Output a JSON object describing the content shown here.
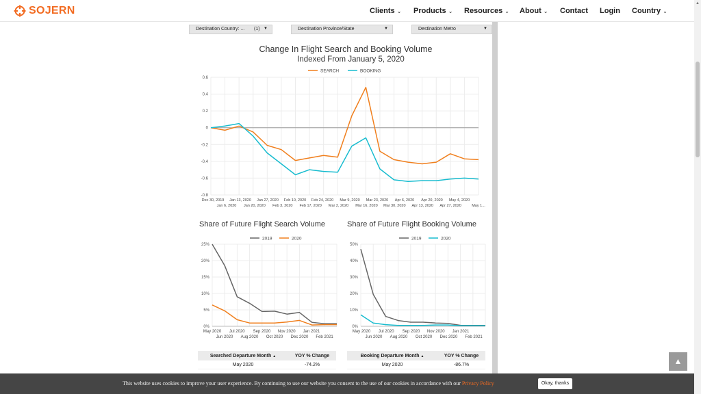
{
  "brand": {
    "name": "SOJERN",
    "accent": "#f26b21"
  },
  "nav": {
    "items": [
      {
        "label": "Clients",
        "dropdown": true
      },
      {
        "label": "Products",
        "dropdown": true
      },
      {
        "label": "Resources",
        "dropdown": true
      },
      {
        "label": "About",
        "dropdown": true
      },
      {
        "label": "Contact",
        "dropdown": false
      },
      {
        "label": "Login",
        "dropdown": false
      },
      {
        "label": "Country",
        "dropdown": true
      }
    ]
  },
  "filters": [
    {
      "label": "Destination Country: ...",
      "count": "(1)"
    },
    {
      "label": "Destination Province/State",
      "count": ""
    },
    {
      "label": "Destination Metro",
      "count": ""
    }
  ],
  "main_chart": {
    "title": "Change In Flight Search and Booking Volume",
    "subtitle": "Indexed From January 5, 2020"
  },
  "search_chart": {
    "title": "Share of Future Flight Search Volume"
  },
  "booking_chart": {
    "title": "Share of Future Flight Booking Volume"
  },
  "chart_data": [
    {
      "type": "line",
      "title": "Change In Flight Search and Booking Volume",
      "subtitle": "Indexed From January 5, 2020",
      "x": [
        "Dec 30, 2019",
        "Jan 6, 2020",
        "Jan 13, 2020",
        "Jan 20, 2020",
        "Jan 27, 2020",
        "Feb 3, 2020",
        "Feb 10, 2020",
        "Feb 17, 2020",
        "Feb 24, 2020",
        "Mar 2, 2020",
        "Mar 9, 2020",
        "Mar 16, 2020",
        "Mar 23, 2020",
        "Mar 30, 2020",
        "Apr 6, 2020",
        "Apr 13, 2020",
        "Apr 20, 2020",
        "Apr 27, 2020",
        "May 4, 2020",
        "May 1..."
      ],
      "x_labels_top": [
        "Dec 30, 2019",
        "Jan 13, 2020",
        "Jan 27, 2020",
        "Feb 10, 2020",
        "Feb 24, 2020",
        "Mar 9, 2020",
        "Mar 23, 2020",
        "Apr 6, 2020",
        "Apr 20, 2020",
        "May 4, 2020"
      ],
      "x_labels_bottom": [
        "Jan 6, 2020",
        "Jan 20, 2020",
        "Feb 3, 2020",
        "Feb 17, 2020",
        "Mar 2, 2020",
        "Mar 16, 2020",
        "Mar 30, 2020",
        "Apr 13, 2020",
        "Apr 27, 2020",
        "May 1..."
      ],
      "series": [
        {
          "name": "SEARCH",
          "color": "#f07f1d",
          "values": [
            0,
            -0.03,
            0.02,
            -0.05,
            -0.21,
            -0.26,
            -0.39,
            -0.36,
            -0.33,
            -0.35,
            0.14,
            0.48,
            -0.28,
            -0.38,
            -0.41,
            -0.43,
            -0.41,
            -0.31,
            -0.37,
            -0.38
          ]
        },
        {
          "name": "BOOKING",
          "color": "#17bccf",
          "values": [
            0,
            0.02,
            0.05,
            -0.1,
            -0.3,
            -0.43,
            -0.56,
            -0.5,
            -0.52,
            -0.53,
            -0.22,
            -0.12,
            -0.49,
            -0.62,
            -0.64,
            -0.63,
            -0.63,
            -0.61,
            -0.6,
            -0.61
          ]
        }
      ],
      "yticks": [
        "0.6",
        "0.4",
        "0.2",
        "0",
        "-0.2",
        "-0.4",
        "-0.6",
        "-0.8"
      ],
      "ylim": [
        -0.8,
        0.6
      ],
      "legend": "top-center",
      "grid": true
    },
    {
      "type": "line",
      "title": "Share of Future Flight Search Volume",
      "x_labels_top": [
        "May 2020",
        "Jul 2020",
        "Sep 2020",
        "Nov 2020",
        "Jan 2021"
      ],
      "x_labels_bottom": [
        "Jun 2020",
        "Aug 2020",
        "Oct 2020",
        "Dec 2020",
        "Feb 2021"
      ],
      "series": [
        {
          "name": "2019",
          "color": "#666666",
          "values": [
            25,
            18.5,
            9,
            7,
            4.5,
            4.6,
            3.7,
            4.2,
            1.2,
            0.8,
            0.8
          ]
        },
        {
          "name": "2020",
          "color": "#f07f1d",
          "values": [
            6.5,
            4.7,
            2,
            1,
            1,
            1,
            1.3,
            1.8,
            0.4,
            0.5,
            0.5
          ]
        }
      ],
      "yticks": [
        "25%",
        "20%",
        "15%",
        "10%",
        "5%",
        "0%"
      ],
      "ylim": [
        0,
        25
      ],
      "legend": "top-center",
      "grid": true
    },
    {
      "type": "line",
      "title": "Share of Future Flight Booking Volume",
      "x_labels_top": [
        "May 2020",
        "Jul 2020",
        "Sep 2020",
        "Nov 2020",
        "Jan 2021"
      ],
      "x_labels_bottom": [
        "Jun 2020",
        "Aug 2020",
        "Oct 2020",
        "Dec 2020",
        "Feb 2021"
      ],
      "series": [
        {
          "name": "2019",
          "color": "#666666",
          "values": [
            47,
            19.5,
            6,
            3.5,
            2.5,
            2.5,
            2,
            1.8,
            0.6,
            0.5,
            0.5
          ]
        },
        {
          "name": "2020",
          "color": "#17bccf",
          "values": [
            7,
            2,
            1,
            0.5,
            0.5,
            0.5,
            0.8,
            0.8,
            0.3,
            0.3,
            0.3
          ]
        }
      ],
      "yticks": [
        "50%",
        "40%",
        "30%",
        "20%",
        "10%",
        "0%"
      ],
      "ylim": [
        0,
        50
      ],
      "legend": "top-center",
      "grid": true
    }
  ],
  "search_table": {
    "headers": [
      "Searched Departure Month",
      "YOY % Change"
    ],
    "sort_icon": "caret-up-icon",
    "rows": [
      {
        "month": "May 2020",
        "change": "-74.2%"
      }
    ]
  },
  "booking_table": {
    "headers": [
      "Booking Departure Month",
      "YOY % Change"
    ],
    "sort_icon": "caret-up-icon",
    "rows": [
      {
        "month": "May 2020",
        "change": "-86.7%"
      }
    ]
  },
  "cookie_bar": {
    "text": "This website uses cookies to improve your user experience. By continuing to use our website you consent to the use of our cookies in accordance with our",
    "link": "Privacy Policy",
    "button": "Okay, thanks"
  },
  "back_to_top": {
    "icon": "chevron-up-icon"
  }
}
